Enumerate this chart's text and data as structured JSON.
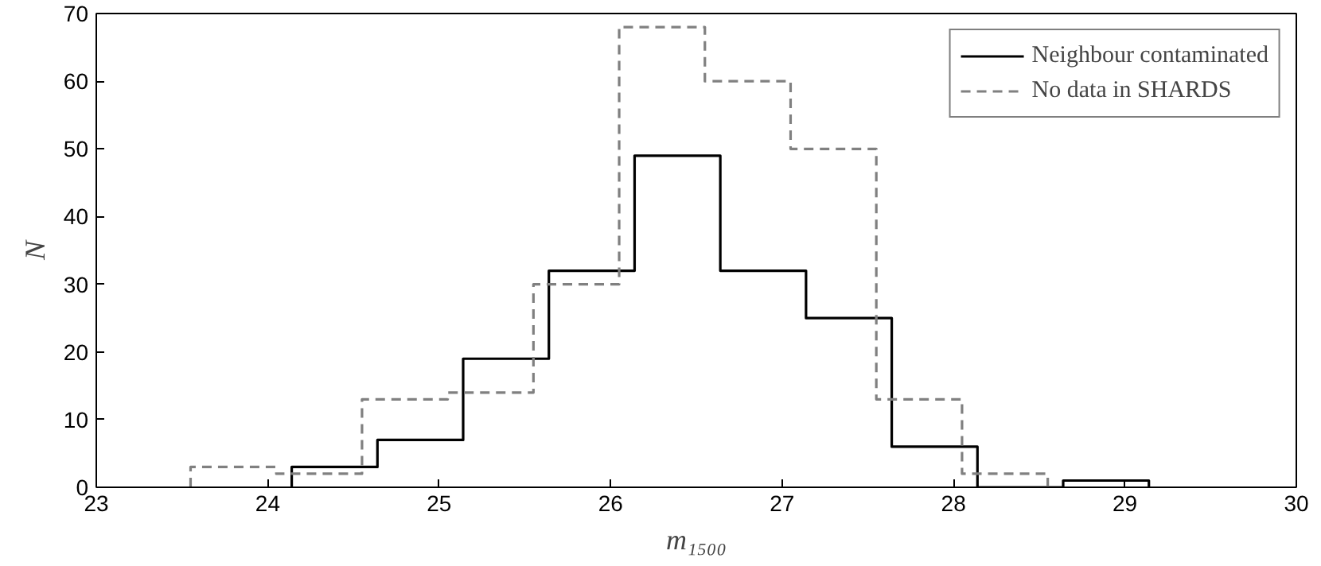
{
  "chart_data": {
    "type": "step",
    "xlabel": "m₁₅₀₀",
    "ylabel": "N",
    "xlim": [
      23,
      30
    ],
    "ylim": [
      0,
      70
    ],
    "xticks": [
      23,
      24,
      25,
      26,
      27,
      28,
      29,
      30
    ],
    "yticks": [
      0,
      10,
      20,
      30,
      40,
      50,
      60,
      70
    ],
    "legend": "top right",
    "grid": false,
    "series": [
      {
        "name": "Neighbour contaminated",
        "color": "#000000",
        "line_style": "solid",
        "x": [
          24.14,
          24.14,
          24.64,
          25.14,
          25.64,
          26.14,
          26.64,
          27.14,
          27.64,
          28.14,
          28.64,
          29.14
        ],
        "values": [
          0,
          3,
          7,
          19,
          32,
          49,
          32,
          25,
          6,
          0,
          1,
          0
        ]
      },
      {
        "name": "No data in SHARDS",
        "color": "#808080",
        "line_style": "dashed",
        "x": [
          23.55,
          23.55,
          24.05,
          24.55,
          25.05,
          25.55,
          26.05,
          26.55,
          27.05,
          27.55,
          28.05,
          28.55
        ],
        "values": [
          0,
          3,
          2,
          13,
          14,
          30,
          68,
          60,
          50,
          13,
          2,
          0
        ]
      }
    ]
  }
}
